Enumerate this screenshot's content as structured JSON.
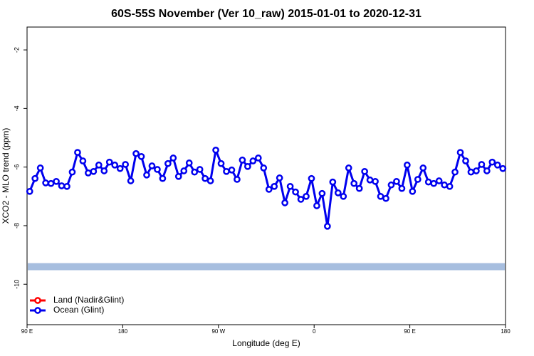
{
  "chart_data": {
    "type": "line",
    "title": "60S-55S November (Ver 10_raw)   2015-01-01 to 2020-12-31",
    "xlabel": "Longitude (deg E)",
    "ylabel": "XCO2 - MLO trend (ppm)",
    "x": [
      92.5,
      97.5,
      102.5,
      107.5,
      112.5,
      117.5,
      122.5,
      127.5,
      132.5,
      137.5,
      142.5,
      147.5,
      152.5,
      157.5,
      162.5,
      167.5,
      172.5,
      177.5,
      182.5,
      187.5,
      192.5,
      197.5,
      202.5,
      207.5,
      212.5,
      217.5,
      222.5,
      227.5,
      232.5,
      237.5,
      242.5,
      247.5,
      252.5,
      257.5,
      262.5,
      267.5,
      272.5,
      277.5,
      282.5,
      287.5,
      292.5,
      297.5,
      302.5,
      307.5,
      312.5,
      317.5,
      322.5,
      327.5,
      332.5,
      337.5,
      342.5,
      347.5,
      352.5,
      357.5,
      362.5,
      367.5,
      372.5,
      377.5,
      382.5,
      387.5,
      392.5,
      397.5,
      402.5,
      407.5,
      412.5,
      417.5,
      422.5,
      427.5,
      432.5,
      437.5,
      442.5,
      447.5,
      452.5,
      457.5,
      462.5,
      467.5,
      472.5,
      477.5,
      482.5,
      487.5,
      492.5,
      497.5,
      502.5,
      507.5,
      512.5,
      517.5,
      522.5,
      527.5,
      532.5,
      537.5
    ],
    "series": [
      {
        "name": "Land (Nadir&Glint)",
        "color": "#ff0000",
        "values": [
          null,
          null,
          null,
          null,
          null,
          null,
          null,
          null,
          null,
          null,
          null,
          null,
          null,
          null,
          null,
          null,
          null,
          null,
          null,
          null,
          null,
          null,
          null,
          null,
          null,
          null,
          null,
          null,
          null,
          null,
          null,
          null,
          null,
          null,
          null,
          null,
          null,
          null,
          null,
          null,
          null,
          null,
          null,
          null,
          null,
          null,
          null,
          null,
          null,
          null,
          null,
          null,
          null,
          null,
          null,
          null,
          null,
          null,
          null,
          null,
          null,
          null,
          null,
          null,
          null,
          null,
          null,
          null,
          null,
          null,
          null,
          null,
          null,
          null,
          null,
          null,
          null,
          null,
          null,
          null,
          null,
          null,
          null,
          null,
          null,
          null,
          null,
          null,
          null,
          null
        ]
      },
      {
        "name": "Ocean (Glint)",
        "color": "#0000ee",
        "values": [
          -6.83,
          -6.39,
          -6.03,
          -6.54,
          -6.56,
          -6.49,
          -6.64,
          -6.66,
          -6.17,
          -5.5,
          -5.79,
          -6.2,
          -6.15,
          -5.93,
          -6.13,
          -5.83,
          -5.93,
          -6.05,
          -5.91,
          -6.47,
          -5.54,
          -5.64,
          -6.27,
          -5.96,
          -6.08,
          -6.39,
          -5.88,
          -5.69,
          -6.32,
          -6.13,
          -5.86,
          -6.17,
          -6.08,
          -6.39,
          -6.47,
          -5.42,
          -5.88,
          -6.15,
          -6.1,
          -6.42,
          -5.76,
          -5.98,
          -5.79,
          -5.69,
          -6.03,
          -6.76,
          -6.66,
          -6.37,
          -7.22,
          -6.66,
          -6.85,
          -7.1,
          -7.0,
          -6.39,
          -7.32,
          -6.9,
          -8.02,
          -6.51,
          -6.88,
          -7.0,
          -6.03,
          -6.56,
          -6.73,
          -6.15,
          -6.44,
          -6.49,
          -7.0,
          -7.07,
          -6.61,
          -6.49,
          -6.73,
          -5.93,
          -6.83,
          -6.42,
          -6.03,
          -6.51,
          -6.56,
          -6.47,
          -6.61,
          -6.66,
          -6.17,
          -5.5,
          -5.79,
          -6.17,
          -6.13,
          -5.91,
          -6.13,
          -5.83,
          -5.93,
          -6.05
        ]
      }
    ],
    "band": {
      "value": -9.4,
      "color": "#a7bedf"
    },
    "xlim": [
      90,
      540
    ],
    "xticks": [
      {
        "value": 90,
        "label": "90 E"
      },
      {
        "value": 180,
        "label": "180"
      },
      {
        "value": 270,
        "label": "90 W"
      },
      {
        "value": 360,
        "label": "0"
      },
      {
        "value": 450,
        "label": "90 E"
      },
      {
        "value": 540,
        "label": "180"
      }
    ],
    "ylim": [
      -11.38,
      -1.22
    ],
    "yticks": [
      -2,
      -4,
      -6,
      -8,
      -10
    ],
    "legend": "bottom-left"
  }
}
